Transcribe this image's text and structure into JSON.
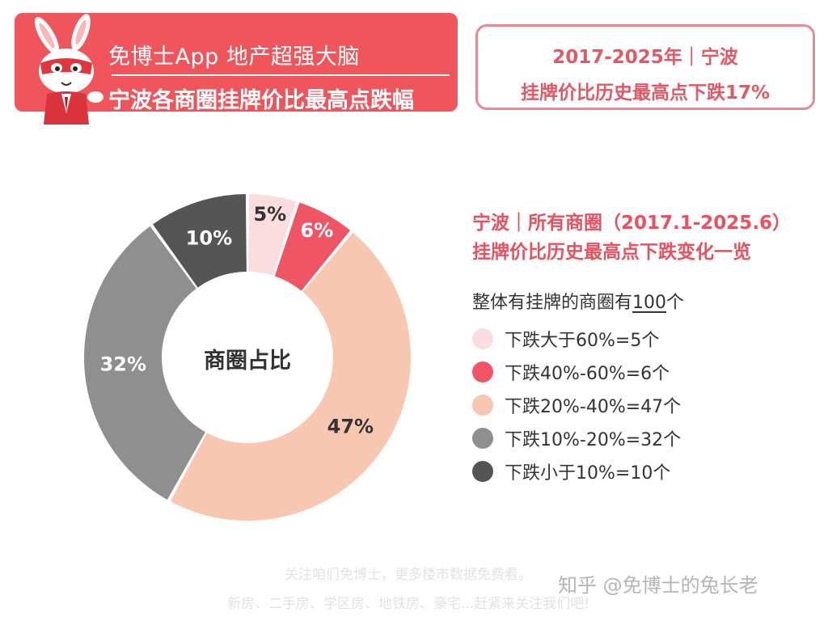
{
  "header": {
    "brand_title": "免博士App 地产超强大脑",
    "subtitle": "宁波各商圈挂牌价比最高点跌幅"
  },
  "info_box": {
    "line1": "2017-2025年｜宁波",
    "line2": "挂牌价比历史最高点下跌17%"
  },
  "description": {
    "title_line1": "宁波｜所有商圈（2017.1-2025.6）",
    "title_line2": "挂牌价比历史最高点下跌变化一览",
    "summary_prefix": "整体有挂牌的商圈有",
    "summary_count": "100",
    "summary_suffix": "个"
  },
  "chart_data": {
    "type": "pie",
    "center_label": "商圈占比",
    "categories": [
      "下跌大于60%=5个",
      "下跌40%-60%=6个",
      "下跌20%-40%=47个",
      "下跌10%-20%=32个",
      "下跌小于10%=10个"
    ],
    "values": [
      5,
      6,
      47,
      32,
      10
    ],
    "labels": [
      "5%",
      "6%",
      "47%",
      "32%",
      "10%"
    ],
    "colors": [
      "#fbdde0",
      "#ef5565",
      "#f8c7b2",
      "#8f8f8f",
      "#555555"
    ],
    "label_colors": [
      "#333333",
      "#ffffff",
      "#333333",
      "#ffffff",
      "#ffffff"
    ],
    "start_angle_deg": 0,
    "direction": "clockwise",
    "legend_position": "right"
  },
  "footer": {
    "line1": "关注咱们免博士，更多楼市数据免费看。",
    "line2": "新房、二手房、学区房、地铁房、豪宅...赶紧来关注我们吧!",
    "watermark": "知乎 @免博士的兔长老"
  }
}
